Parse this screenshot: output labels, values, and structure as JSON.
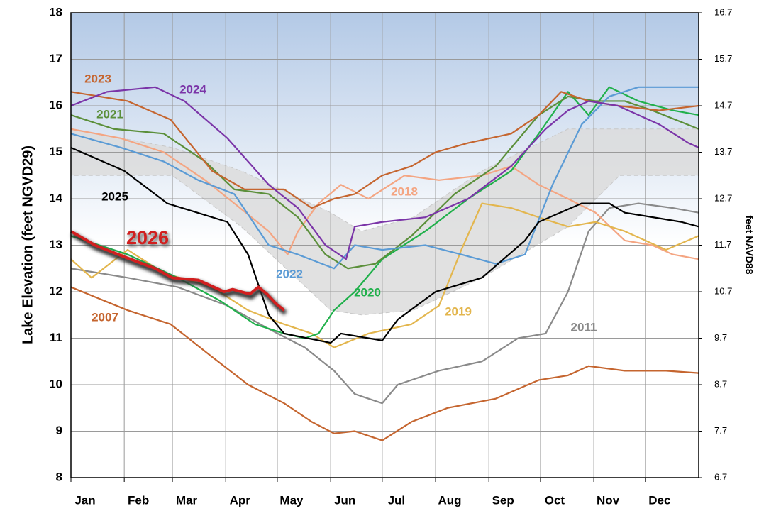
{
  "chart_data": {
    "type": "line",
    "y_label": "Lake Elevation (feet NGVD29)",
    "y2_label": "feet NAVD88",
    "xlim": [
      1,
      366
    ],
    "xticks": [
      {
        "value": 1,
        "label": "Jan"
      },
      {
        "value": 32,
        "label": "Feb"
      },
      {
        "value": 60,
        "label": "Mar"
      },
      {
        "value": 91,
        "label": "Apr"
      },
      {
        "value": 121,
        "label": "May"
      },
      {
        "value": 152,
        "label": "Jun"
      },
      {
        "value": 182,
        "label": "Jul"
      },
      {
        "value": 213,
        "label": "Aug"
      },
      {
        "value": 244,
        "label": "Sep"
      },
      {
        "value": 274,
        "label": "Oct"
      },
      {
        "value": 305,
        "label": "Nov"
      },
      {
        "value": 335,
        "label": "Dec"
      }
    ],
    "ylim": [
      8,
      18
    ],
    "yticks": [
      8,
      9,
      10,
      11,
      12,
      13,
      14,
      15,
      16,
      17,
      18
    ],
    "y2lim": [
      6.7,
      16.7
    ],
    "y2ticks": [
      6.7,
      7.7,
      8.7,
      9.7,
      10.7,
      11.7,
      12.7,
      13.7,
      14.7,
      15.7,
      16.7
    ],
    "grid": true,
    "envelope": {
      "color": "#dcdcdc",
      "x": [
        1,
        60,
        100,
        152,
        170,
        200,
        240,
        290,
        320,
        366
      ],
      "upper": [
        15.5,
        15.1,
        14.6,
        13.7,
        13.3,
        13.6,
        14.6,
        15.5,
        15.5,
        15.5
      ],
      "lower": [
        14.5,
        14.5,
        13.4,
        11.6,
        11.5,
        11.6,
        12.3,
        13.4,
        14.5,
        14.5
      ]
    },
    "series": [
      {
        "name": "2007",
        "color": "#c5652f",
        "x": [
          1,
          34,
          59,
          83,
          104,
          125,
          141,
          154,
          166,
          182,
          199,
          220,
          248,
          273,
          290,
          302,
          323,
          347,
          366
        ],
        "values": [
          12.1,
          11.6,
          11.3,
          10.6,
          10.0,
          9.6,
          9.2,
          8.95,
          9.0,
          8.8,
          9.2,
          9.5,
          9.7,
          10.1,
          10.2,
          10.4,
          10.3,
          10.3,
          10.25
        ]
      },
      {
        "name": "2011",
        "color": "#8a8a8a",
        "x": [
          1,
          34,
          63,
          92,
          116,
          137,
          154,
          166,
          182,
          191,
          215,
          240,
          261,
          277,
          290,
          302,
          314,
          331,
          351,
          366
        ],
        "values": [
          12.5,
          12.3,
          12.1,
          11.7,
          11.2,
          10.8,
          10.3,
          9.8,
          9.6,
          10.0,
          10.3,
          10.5,
          11.0,
          11.1,
          12.0,
          13.3,
          13.8,
          13.9,
          13.8,
          13.7
        ]
      },
      {
        "name": "2018",
        "color": "#f4a582",
        "x": [
          1,
          30,
          55,
          79,
          96,
          116,
          127,
          133,
          145,
          158,
          174,
          195,
          215,
          240,
          257,
          273,
          290,
          306,
          323,
          339,
          351,
          366
        ],
        "values": [
          15.5,
          15.3,
          15.0,
          14.4,
          13.9,
          13.3,
          12.8,
          13.3,
          13.9,
          14.3,
          14.0,
          14.5,
          14.4,
          14.5,
          14.7,
          14.3,
          14.0,
          13.7,
          13.1,
          13.0,
          12.8,
          12.7
        ]
      },
      {
        "name": "2019",
        "color": "#e3b64e",
        "x": [
          1,
          13,
          34,
          55,
          83,
          104,
          125,
          141,
          154,
          174,
          199,
          215,
          228,
          240,
          257,
          273,
          290,
          306,
          323,
          347,
          366
        ],
        "values": [
          12.7,
          12.3,
          12.9,
          12.4,
          12.1,
          11.6,
          11.3,
          11.1,
          10.8,
          11.1,
          11.3,
          11.7,
          12.9,
          13.9,
          13.8,
          13.6,
          13.4,
          13.5,
          13.3,
          12.9,
          13.2
        ]
      },
      {
        "name": "2020",
        "color": "#20b04b",
        "x": [
          1,
          34,
          63,
          88,
          108,
          125,
          137,
          145,
          154,
          166,
          182,
          207,
          232,
          257,
          273,
          290,
          302,
          314,
          331,
          351,
          366
        ],
        "values": [
          13.2,
          12.8,
          12.3,
          11.8,
          11.3,
          11.1,
          11.0,
          11.1,
          11.6,
          12.0,
          12.7,
          13.3,
          14.0,
          14.6,
          15.4,
          16.3,
          15.8,
          16.4,
          16.1,
          15.9,
          15.8
        ]
      },
      {
        "name": "2021",
        "color": "#5b8f3a",
        "x": [
          1,
          26,
          55,
          79,
          96,
          116,
          133,
          149,
          162,
          178,
          199,
          224,
          248,
          273,
          290,
          306,
          323,
          339,
          366
        ],
        "values": [
          15.8,
          15.5,
          15.4,
          14.8,
          14.2,
          14.1,
          13.6,
          12.8,
          12.5,
          12.6,
          13.2,
          14.1,
          14.7,
          15.8,
          16.2,
          16.1,
          16.1,
          15.9,
          15.5
        ]
      },
      {
        "name": "2022",
        "color": "#5b9bd5",
        "x": [
          1,
          30,
          55,
          75,
          96,
          116,
          133,
          154,
          166,
          182,
          207,
          228,
          248,
          265,
          281,
          298,
          314,
          331,
          347,
          366
        ],
        "values": [
          15.4,
          15.1,
          14.8,
          14.4,
          14.1,
          13.0,
          12.8,
          12.5,
          13.0,
          12.9,
          13.0,
          12.8,
          12.6,
          12.8,
          14.3,
          15.6,
          16.2,
          16.4,
          16.4,
          16.4
        ]
      },
      {
        "name": "2023",
        "color": "#c5652f",
        "x": [
          1,
          34,
          59,
          83,
          102,
          125,
          141,
          154,
          166,
          182,
          199,
          213,
          232,
          257,
          273,
          286,
          302,
          319,
          343,
          366
        ],
        "values": [
          16.3,
          16.1,
          15.7,
          14.6,
          14.2,
          14.2,
          13.8,
          14.0,
          14.1,
          14.5,
          14.7,
          15.0,
          15.2,
          15.4,
          15.8,
          16.3,
          16.1,
          16.0,
          15.9,
          16.0
        ]
      },
      {
        "name": "2024",
        "color": "#7b35a8",
        "x": [
          1,
          22,
          50,
          67,
          92,
          104,
          116,
          133,
          149,
          161,
          166,
          182,
          207,
          232,
          257,
          277,
          290,
          302,
          319,
          343,
          360,
          366
        ],
        "values": [
          16.0,
          16.3,
          16.4,
          16.1,
          15.3,
          14.8,
          14.3,
          13.8,
          13.0,
          12.7,
          13.4,
          13.5,
          13.6,
          14.0,
          14.7,
          15.5,
          15.9,
          16.1,
          16.0,
          15.6,
          15.2,
          15.1
        ]
      },
      {
        "name": "2025",
        "color": "#000000",
        "x": [
          1,
          32,
          57,
          92,
          104,
          116,
          125,
          152,
          158,
          174,
          182,
          191,
          213,
          240,
          265,
          273,
          298,
          314,
          323,
          356,
          366
        ],
        "values": [
          15.1,
          14.6,
          13.9,
          13.5,
          12.8,
          11.5,
          11.1,
          10.9,
          11.1,
          11.0,
          10.95,
          11.4,
          12.0,
          12.3,
          13.1,
          13.5,
          13.9,
          13.9,
          13.7,
          13.5,
          13.4
        ]
      },
      {
        "name": "2026",
        "color": "#d11f1f",
        "x": [
          1,
          15,
          32,
          50,
          60,
          75,
          90,
          95,
          100,
          105,
          110,
          115,
          120,
          125
        ],
        "values": [
          13.3,
          13.0,
          12.75,
          12.5,
          12.3,
          12.25,
          12.0,
          12.05,
          12.0,
          11.95,
          12.1,
          11.95,
          11.75,
          11.6
        ]
      }
    ]
  }
}
